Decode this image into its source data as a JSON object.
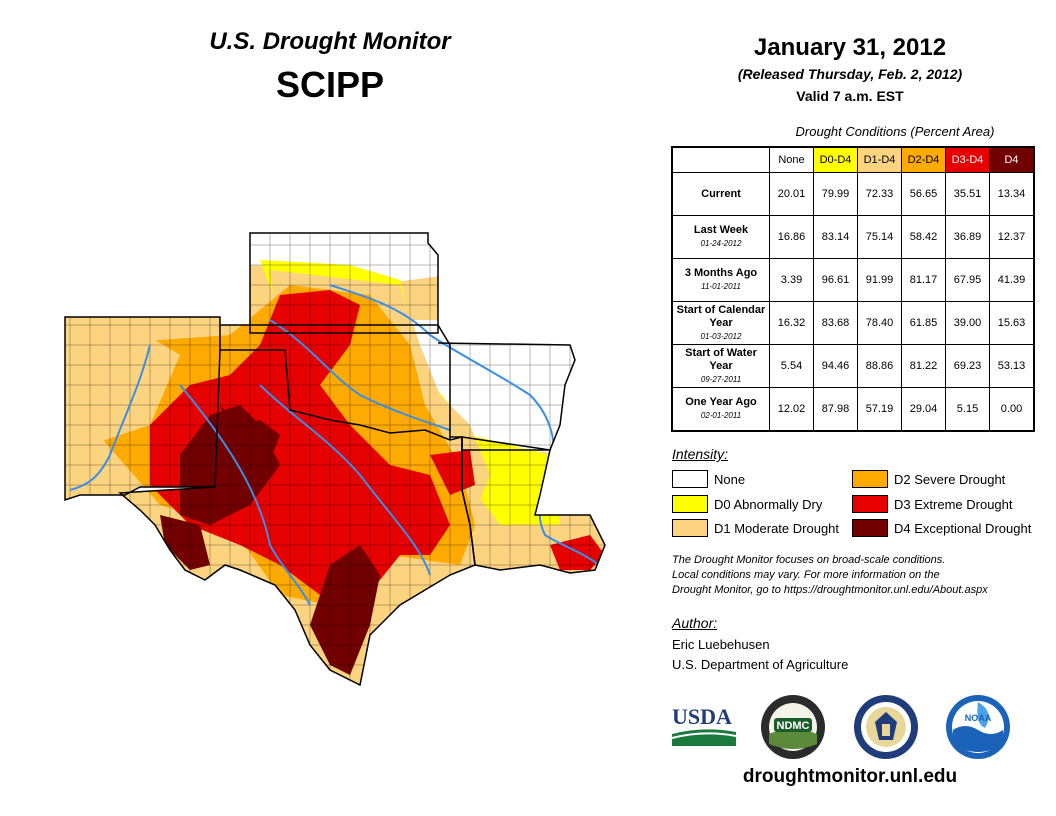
{
  "header": {
    "title": "U.S. Drought Monitor",
    "region": "SCIPP",
    "date": "January 31, 2012",
    "released": "(Released Thursday, Feb. 2, 2012)",
    "valid": "Valid 7 a.m. EST"
  },
  "table": {
    "title": "Drought Conditions (Percent Area)",
    "columns": [
      "None",
      "D0-D4",
      "D1-D4",
      "D2-D4",
      "D3-D4",
      "D4"
    ],
    "column_colors": [
      "#ffffff",
      "#ffff00",
      "#fcd37f",
      "#ffaa00",
      "#e60000",
      "#730000"
    ],
    "rows": [
      {
        "label": "Current",
        "date": "",
        "values": [
          "20.01",
          "79.99",
          "72.33",
          "56.65",
          "35.51",
          "13.34"
        ]
      },
      {
        "label": "Last Week",
        "date": "01-24-2012",
        "values": [
          "16.86",
          "83.14",
          "75.14",
          "58.42",
          "36.89",
          "12.37"
        ]
      },
      {
        "label": "3 Months Ago",
        "date": "11-01-2011",
        "values": [
          "3.39",
          "96.61",
          "91.99",
          "81.17",
          "67.95",
          "41.39"
        ]
      },
      {
        "label": "Start of Calendar Year",
        "date": "01-03-2012",
        "values": [
          "16.32",
          "83.68",
          "78.40",
          "61.85",
          "39.00",
          "15.63"
        ]
      },
      {
        "label": "Start of Water Year",
        "date": "09-27-2011",
        "values": [
          "5.54",
          "94.46",
          "88.86",
          "81.22",
          "69.23",
          "53.13"
        ]
      },
      {
        "label": "One Year Ago",
        "date": "02-01-2011",
        "values": [
          "12.02",
          "87.98",
          "57.19",
          "29.04",
          "5.15",
          "0.00"
        ]
      }
    ]
  },
  "legend": {
    "title": "Intensity:",
    "items": [
      {
        "label": "None",
        "color": "#ffffff"
      },
      {
        "label": "D0 Abnormally Dry",
        "color": "#ffff00"
      },
      {
        "label": "D1 Moderate Drought",
        "color": "#fcd37f"
      },
      {
        "label": "D2 Severe Drought",
        "color": "#ffaa00"
      },
      {
        "label": "D3 Extreme Drought",
        "color": "#e60000"
      },
      {
        "label": "D4 Exceptional Drought",
        "color": "#730000"
      }
    ]
  },
  "note": {
    "line1": "The Drought Monitor focuses on broad-scale conditions.",
    "line2": "Local conditions may vary. For more information on the",
    "line3": "Drought Monitor, go to https://droughtmonitor.unl.edu/About.aspx"
  },
  "author": {
    "title": "Author:",
    "name": "Eric Luebehusen",
    "org": "U.S. Department of Agriculture"
  },
  "logos": {
    "usda": "USDA",
    "ndmc": "NDMC",
    "noaa": "NOAA"
  },
  "url": "droughtmonitor.unl.edu"
}
